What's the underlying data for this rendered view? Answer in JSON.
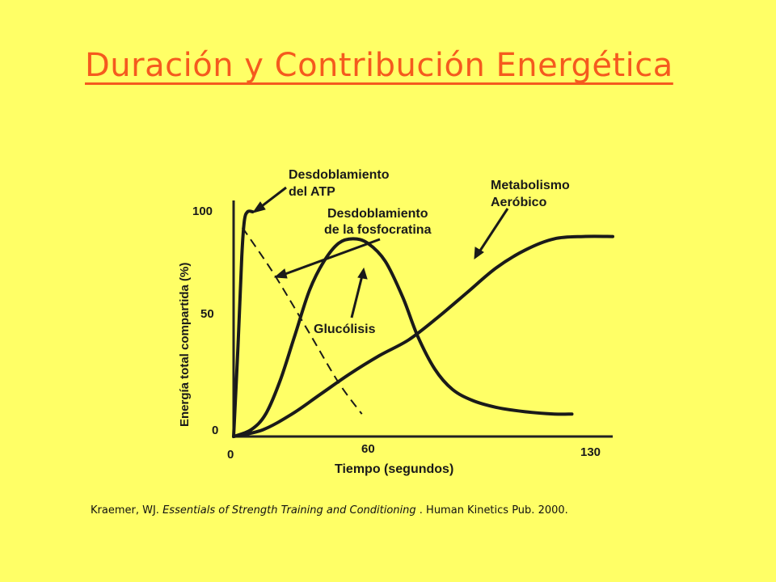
{
  "slide": {
    "title": "Duración y Contribución Energética"
  },
  "chart_data": {
    "type": "line",
    "ylabel": "Energía total compartida (%)",
    "xlabel": "Tiempo (segundos)",
    "x_ticks": [
      "0",
      "60",
      "130"
    ],
    "y_ticks": [
      "0",
      "50",
      "100"
    ],
    "xlim": [
      0,
      130
    ],
    "ylim": [
      0,
      100
    ],
    "series": [
      {
        "name": "Desdoblamiento del ATP",
        "points": [
          [
            0,
            0
          ],
          [
            1.5,
            40
          ],
          [
            2.8,
            80
          ],
          [
            3.7,
            96
          ],
          [
            4.8,
            100
          ],
          [
            6.5,
            100
          ]
        ]
      },
      {
        "name": "Desdoblamiento de la fosfocratina",
        "dashed": true,
        "points": [
          [
            3,
            93
          ],
          [
            14,
            72
          ],
          [
            26,
            46
          ],
          [
            36,
            24
          ],
          [
            44,
            10
          ]
        ]
      },
      {
        "name": "Glucólisis",
        "points": [
          [
            0,
            0
          ],
          [
            6,
            3
          ],
          [
            11,
            10
          ],
          [
            16,
            25
          ],
          [
            21,
            45
          ],
          [
            26,
            65
          ],
          [
            31,
            78
          ],
          [
            36,
            86
          ],
          [
            41,
            88
          ],
          [
            46,
            86
          ],
          [
            52,
            78
          ],
          [
            58,
            62
          ],
          [
            63,
            45
          ],
          [
            69,
            30
          ],
          [
            75,
            21
          ],
          [
            82,
            16
          ],
          [
            90,
            13
          ],
          [
            100,
            11
          ],
          [
            110,
            10
          ],
          [
            116,
            10
          ]
        ]
      },
      {
        "name": "Metabolismo Aeróbico",
        "points": [
          [
            0,
            0
          ],
          [
            10,
            3
          ],
          [
            20,
            10
          ],
          [
            30,
            19
          ],
          [
            40,
            28
          ],
          [
            50,
            36
          ],
          [
            60,
            43
          ],
          [
            70,
            53
          ],
          [
            80,
            64
          ],
          [
            90,
            75
          ],
          [
            100,
            83
          ],
          [
            110,
            88
          ],
          [
            120,
            89
          ],
          [
            130,
            89
          ]
        ]
      }
    ],
    "annotations": [
      {
        "lines": [
          "Desdoblamiento",
          "del ATP"
        ]
      },
      {
        "lines": [
          "Desdoblamiento",
          "de la fosfocratina"
        ]
      },
      {
        "lines": [
          "Metabolismo",
          "Aeróbico"
        ]
      },
      {
        "lines": [
          "Glucólisis"
        ]
      }
    ]
  },
  "citation": {
    "author": "Kraemer, WJ.",
    "title": "Essentials of Strength Training and Conditioning",
    "publisher": ". Human Kinetics Pub. 2000."
  }
}
